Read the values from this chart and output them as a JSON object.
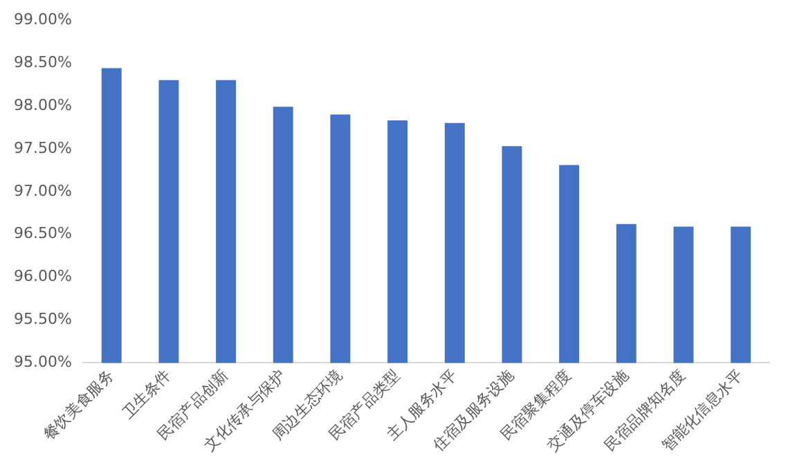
{
  "chart_data": {
    "type": "bar",
    "categories": [
      "餐饮美食服务",
      "卫生条件",
      "民宿产品创新",
      "文化传承与保护",
      "周边生态环境",
      "民宿产品类型",
      "主人服务水平",
      "住宿及服务设施",
      "民宿聚集程度",
      "交通及停车设施",
      "民宿品牌知名度",
      "智能化信息水平"
    ],
    "values": [
      98.44,
      98.3,
      98.3,
      97.99,
      97.9,
      97.83,
      97.8,
      97.53,
      97.31,
      96.62,
      96.59,
      96.59
    ],
    "color": "#4472c4",
    "ylim": [
      95,
      99
    ],
    "yticks": [
      {
        "value": 95,
        "label": "95.00%"
      },
      {
        "value": 95.5,
        "label": "95.50%"
      },
      {
        "value": 96,
        "label": "96.00%"
      },
      {
        "value": 96.5,
        "label": "96.50%"
      },
      {
        "value": 97,
        "label": "97.00%"
      },
      {
        "value": 97.5,
        "label": "97.50%"
      },
      {
        "value": 98,
        "label": "98.00%"
      },
      {
        "value": 98.5,
        "label": "98.50%"
      },
      {
        "value": 99,
        "label": "99.00%"
      }
    ],
    "grid": false,
    "legend": false
  }
}
